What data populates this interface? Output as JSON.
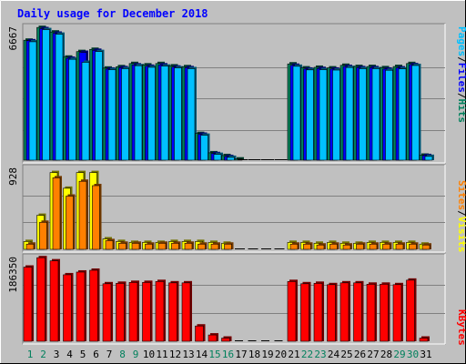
{
  "chart_data": [
    {
      "type": "bar",
      "title": "Daily usage for December 2018",
      "categories": [
        "1",
        "2",
        "3",
        "4",
        "5",
        "6",
        "7",
        "8",
        "9",
        "10",
        "11",
        "12",
        "13",
        "14",
        "15",
        "16",
        "17",
        "18",
        "19",
        "20",
        "21",
        "22",
        "23",
        "24",
        "25",
        "26",
        "27",
        "28",
        "29",
        "30",
        "31"
      ],
      "weekend_days": [
        "1",
        "2",
        "8",
        "9",
        "15",
        "16",
        "22",
        "23",
        "29",
        "30"
      ],
      "ymax_label": "6667",
      "ylim": [
        0,
        6667
      ],
      "series": [
        {
          "name": "Hits",
          "color": "#00805c",
          "values": [
            6020,
            6660,
            6430,
            5170,
            5450,
            5560,
            4620,
            4690,
            4850,
            4780,
            4850,
            4730,
            4690,
            1340,
            370,
            230,
            60,
            0,
            0,
            0,
            4830,
            4630,
            4660,
            4630,
            4760,
            4700,
            4700,
            4640,
            4700,
            4850,
            250
          ]
        },
        {
          "name": "Files",
          "color": "#0000ff",
          "values": [
            5990,
            6600,
            6370,
            5110,
            5410,
            5510,
            4570,
            4640,
            4780,
            4710,
            4780,
            4670,
            4640,
            1300,
            330,
            180,
            30,
            0,
            0,
            0,
            4760,
            4570,
            4600,
            4570,
            4700,
            4640,
            4640,
            4570,
            4630,
            4790,
            230
          ]
        },
        {
          "name": "Pages",
          "color": "#00c0ff",
          "values": [
            5940,
            6550,
            6320,
            5060,
            4910,
            5450,
            4540,
            4590,
            4740,
            4660,
            4720,
            4630,
            4590,
            1250,
            290,
            140,
            0,
            0,
            0,
            0,
            4710,
            4530,
            4540,
            4520,
            4650,
            4590,
            4590,
            4510,
            4580,
            4750,
            190
          ]
        }
      ],
      "legend": [
        "Pages",
        "/",
        "Files",
        "/",
        "Hits"
      ],
      "legend_colors": [
        "#00c0ff",
        "#000000",
        "#0000ff",
        "#000000",
        "#00805c"
      ]
    },
    {
      "type": "bar",
      "ymax_label": "928",
      "ylim": [
        0,
        928
      ],
      "series": [
        {
          "name": "Visits",
          "color": "#ffff00",
          "values": [
            90,
            390,
            880,
            700,
            880,
            880,
            120,
            90,
            80,
            80,
            80,
            90,
            90,
            90,
            80,
            70,
            0,
            0,
            0,
            0,
            80,
            80,
            70,
            80,
            70,
            70,
            80,
            80,
            80,
            80,
            60
          ]
        },
        {
          "name": "Sites",
          "color": "#ff8000",
          "values": [
            60,
            310,
            820,
            610,
            780,
            730,
            100,
            70,
            70,
            60,
            70,
            70,
            70,
            60,
            60,
            60,
            0,
            0,
            0,
            0,
            60,
            60,
            50,
            60,
            50,
            60,
            60,
            60,
            60,
            60,
            50
          ]
        }
      ],
      "legend": [
        "Sites",
        "/",
        "Visits"
      ],
      "legend_colors": [
        "#ff8000",
        "#000000",
        "#ffff00"
      ]
    },
    {
      "type": "bar",
      "ymax_label": "186350",
      "ylim": [
        0,
        186350
      ],
      "series": [
        {
          "name": "KBytes",
          "color": "#ff0000",
          "values": [
            165000,
            186000,
            179000,
            148000,
            154000,
            158000,
            128000,
            129000,
            131000,
            131000,
            133000,
            130000,
            130000,
            34000,
            14000,
            7000,
            2000,
            0,
            0,
            0,
            133000,
            128000,
            129000,
            126000,
            130000,
            130000,
            127000,
            127000,
            126000,
            136000,
            7000
          ]
        }
      ],
      "legend": [
        "KBytes"
      ],
      "legend_colors": [
        "#ff0000"
      ]
    }
  ]
}
